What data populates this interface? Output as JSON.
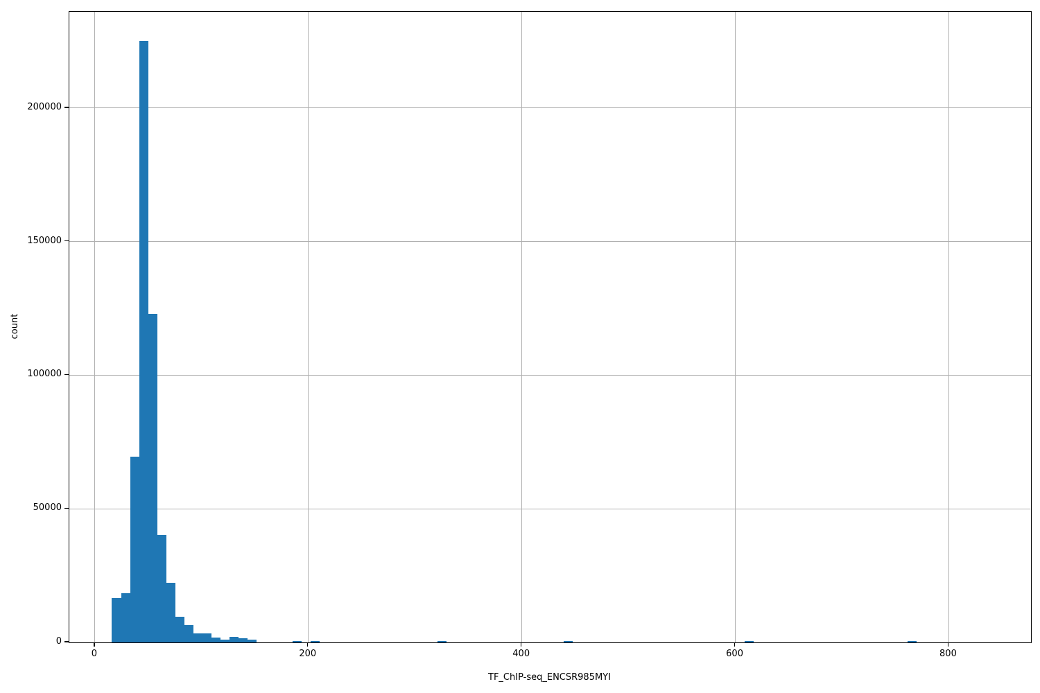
{
  "chart_data": {
    "type": "bar",
    "subtype": "histogram",
    "title": "",
    "xlabel": "TF_ChIP-seq_ENCSR985MYI",
    "ylabel": "count",
    "xlim": [
      -24,
      877
    ],
    "ylim": [
      0,
      236050
    ],
    "grid": true,
    "legend": false,
    "colors": {
      "bar": "#1f77b4",
      "grid": "#b0b0b0",
      "spine": "#000000",
      "text": "#000000",
      "background": "#ffffff"
    },
    "x_tick_values": [
      0,
      200,
      400,
      600,
      800
    ],
    "x_tick_labels": [
      "0",
      "200",
      "400",
      "600",
      "800"
    ],
    "y_tick_values": [
      0,
      50000,
      100000,
      150000,
      200000
    ],
    "y_tick_labels": [
      "0",
      "50000",
      "100000",
      "150000",
      "200000"
    ],
    "bins": [
      [
        15.9,
        24.4,
        16500
      ],
      [
        24.4,
        32.9,
        18500
      ],
      [
        32.9,
        41.3,
        69600
      ],
      [
        41.3,
        49.8,
        225200
      ],
      [
        49.8,
        58.3,
        123000
      ],
      [
        58.3,
        66.7,
        40200
      ],
      [
        66.7,
        75.2,
        22300
      ],
      [
        75.2,
        83.7,
        9600
      ],
      [
        83.7,
        92.2,
        6500
      ],
      [
        92.2,
        100.6,
        3450
      ],
      [
        100.6,
        109.1,
        3450
      ],
      [
        109.1,
        117.6,
        1740
      ],
      [
        117.6,
        126.0,
        1040
      ],
      [
        126.0,
        134.5,
        2080
      ],
      [
        134.5,
        143.0,
        1480
      ],
      [
        143.0,
        151.4,
        960
      ],
      [
        185.3,
        193.7,
        500
      ],
      [
        202.2,
        210.7,
        500
      ],
      [
        320.8,
        329.3,
        550
      ],
      [
        439.4,
        447.8,
        450
      ],
      [
        608.8,
        617.3,
        400
      ],
      [
        761.2,
        769.7,
        400
      ]
    ]
  }
}
